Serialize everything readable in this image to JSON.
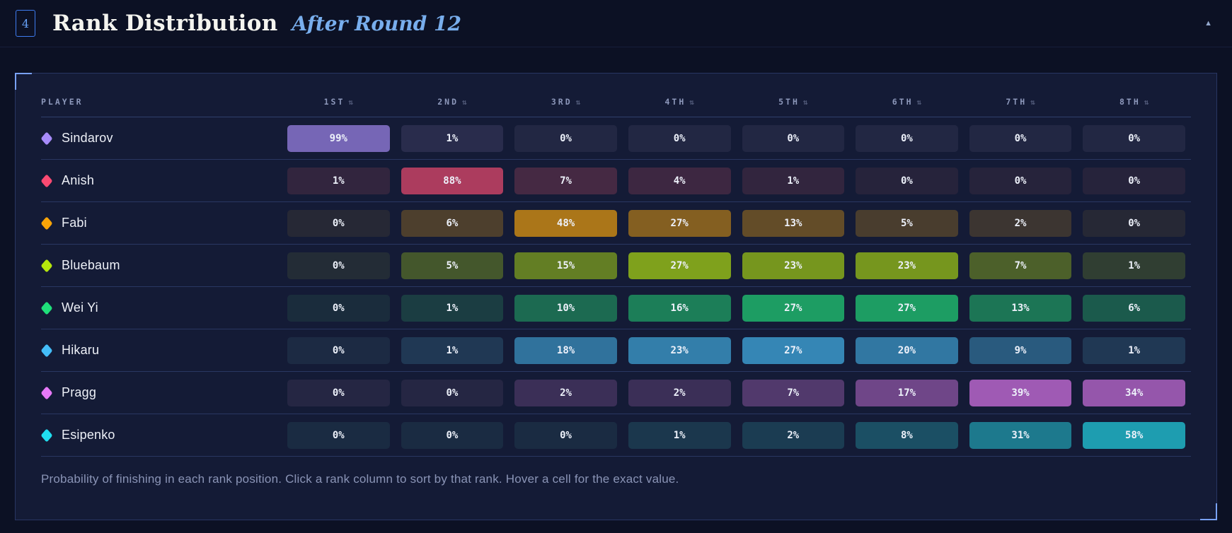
{
  "header": {
    "panel_number": "4",
    "title": "Rank Distribution",
    "subtitle": "After Round 12"
  },
  "icons": {
    "collapse": "▲",
    "sort": "⇅",
    "player_marker": "diamond"
  },
  "table": {
    "player_column_label": "PLAYER"
  },
  "chart_data": {
    "type": "heatmap",
    "title": "Rank Distribution",
    "subtitle": "After Round 12",
    "unit": "%",
    "columns": [
      "1ST",
      "2ND",
      "3RD",
      "4TH",
      "5TH",
      "6TH",
      "7TH",
      "8TH"
    ],
    "players": [
      {
        "name": "Sindarov",
        "color": "#a78bfa",
        "values": [
          99,
          1,
          0,
          0,
          0,
          0,
          0,
          0
        ]
      },
      {
        "name": "Anish",
        "color": "#fb4a72",
        "values": [
          1,
          88,
          7,
          4,
          1,
          0,
          0,
          0
        ]
      },
      {
        "name": "Fabi",
        "color": "#f9a408",
        "values": [
          0,
          6,
          48,
          27,
          13,
          5,
          2,
          0
        ]
      },
      {
        "name": "Bluebaum",
        "color": "#b5e60d",
        "values": [
          0,
          5,
          15,
          27,
          23,
          23,
          7,
          1
        ]
      },
      {
        "name": "Wei Yi",
        "color": "#1fe07a",
        "values": [
          0,
          1,
          10,
          16,
          27,
          27,
          13,
          6
        ]
      },
      {
        "name": "Hikaru",
        "color": "#44bdf8",
        "values": [
          0,
          1,
          18,
          23,
          27,
          20,
          9,
          1
        ]
      },
      {
        "name": "Pragg",
        "color": "#e679f7",
        "values": [
          0,
          0,
          2,
          2,
          7,
          17,
          39,
          34
        ]
      },
      {
        "name": "Esipenko",
        "color": "#20dff0",
        "values": [
          0,
          0,
          0,
          1,
          2,
          8,
          31,
          58
        ]
      }
    ]
  },
  "footer": {
    "note": "Probability of finishing in each rank position. Click a rank column to sort by that rank. Hover a cell for the exact value."
  },
  "colors": {
    "page_bg": "#0c1124",
    "panel_bg": "#141b36",
    "panel_border": "#283562",
    "corner_accent": "#79a1f6",
    "cell_base_bg": "#1a2138",
    "header_text": "#8d98bb",
    "accent_blue": "#3e7cf0",
    "subtitle_blue": "#78aeed",
    "note_text": "#8a94b6"
  }
}
